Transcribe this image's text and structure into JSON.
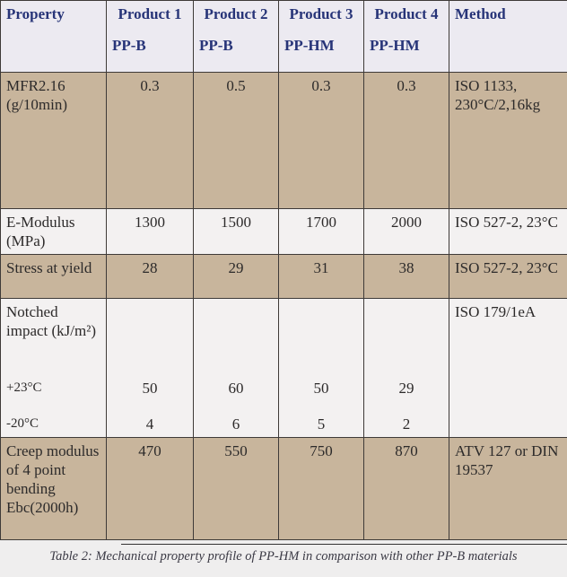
{
  "header": {
    "property": "Property",
    "products": [
      {
        "name": "Product 1",
        "material": "PP-B"
      },
      {
        "name": "Product 2",
        "material": "PP-B"
      },
      {
        "name": "Product 3",
        "material": "PP-HM"
      },
      {
        "name": "Product 4",
        "material": "PP-HM"
      }
    ],
    "method": "Method"
  },
  "table": {
    "rows": [
      {
        "label": "MFR2.16 (g/10min)",
        "values": [
          0.3,
          0.5,
          0.3,
          0.3
        ],
        "method": "ISO 1133, 230°C/2,16kg"
      },
      {
        "label": "E-Modulus (MPa)",
        "values": [
          1300,
          1500,
          1700,
          2000
        ],
        "method": "ISO 527-2, 23°C"
      },
      {
        "label": "Stress at yield",
        "values": [
          28,
          29,
          31,
          38
        ],
        "method": "ISO 527-2, 23°C"
      },
      {
        "label": "Notched impact (kJ/m²)",
        "method": "ISO 179/1eA",
        "subrows": [
          {
            "label": "+23°C",
            "values": [
              50,
              60,
              50,
              29
            ]
          },
          {
            "label": "-20°C",
            "values": [
              4,
              6,
              5,
              2
            ]
          }
        ]
      },
      {
        "label": "Creep modulus of 4 point bending Ebc(2000h)",
        "values": [
          470,
          550,
          750,
          870
        ],
        "method": "ATV 127 or DIN 19537"
      }
    ]
  },
  "caption": "Table 2: Mechanical property profile of PP-HM in comparison with other PP-B materials"
}
